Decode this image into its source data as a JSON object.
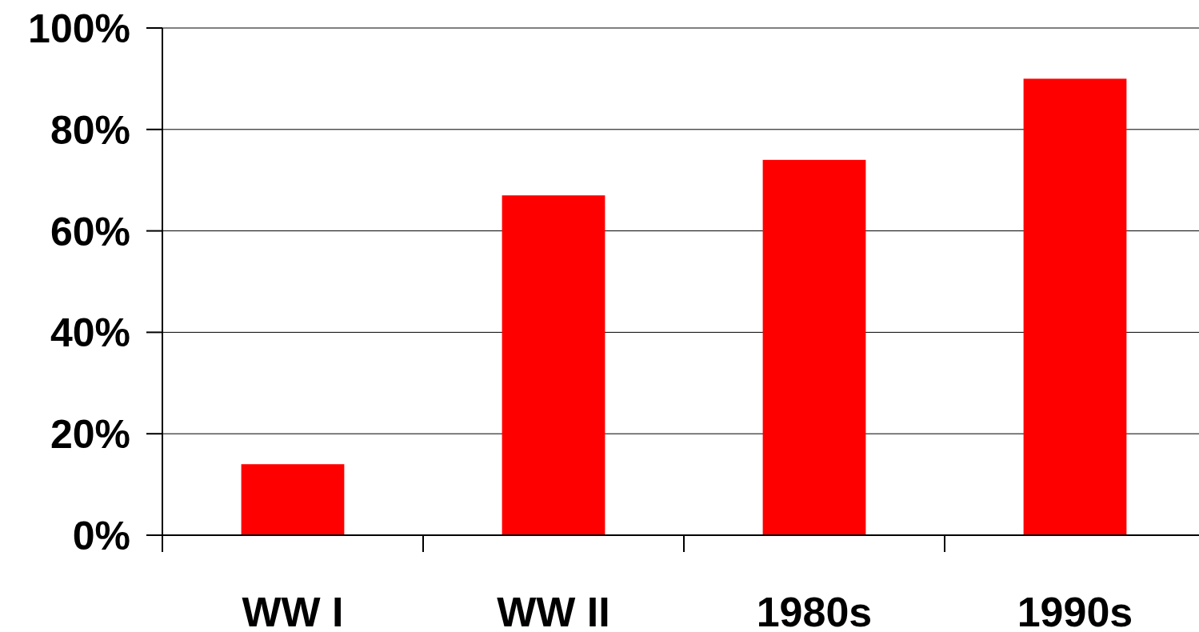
{
  "chart_data": {
    "type": "bar",
    "categories": [
      "WW I",
      "WW II",
      "1980s",
      "1990s"
    ],
    "values": [
      14,
      67,
      74,
      90
    ],
    "color": "#ff0000",
    "ylim": [
      0,
      100
    ],
    "yticks": [
      {
        "value": 0,
        "label": "0%"
      },
      {
        "value": 20,
        "label": "20%"
      },
      {
        "value": 40,
        "label": "40%"
      },
      {
        "value": 60,
        "label": "60%"
      },
      {
        "value": 80,
        "label": "80%"
      },
      {
        "value": 100,
        "label": "100%"
      }
    ],
    "grid": "y"
  }
}
